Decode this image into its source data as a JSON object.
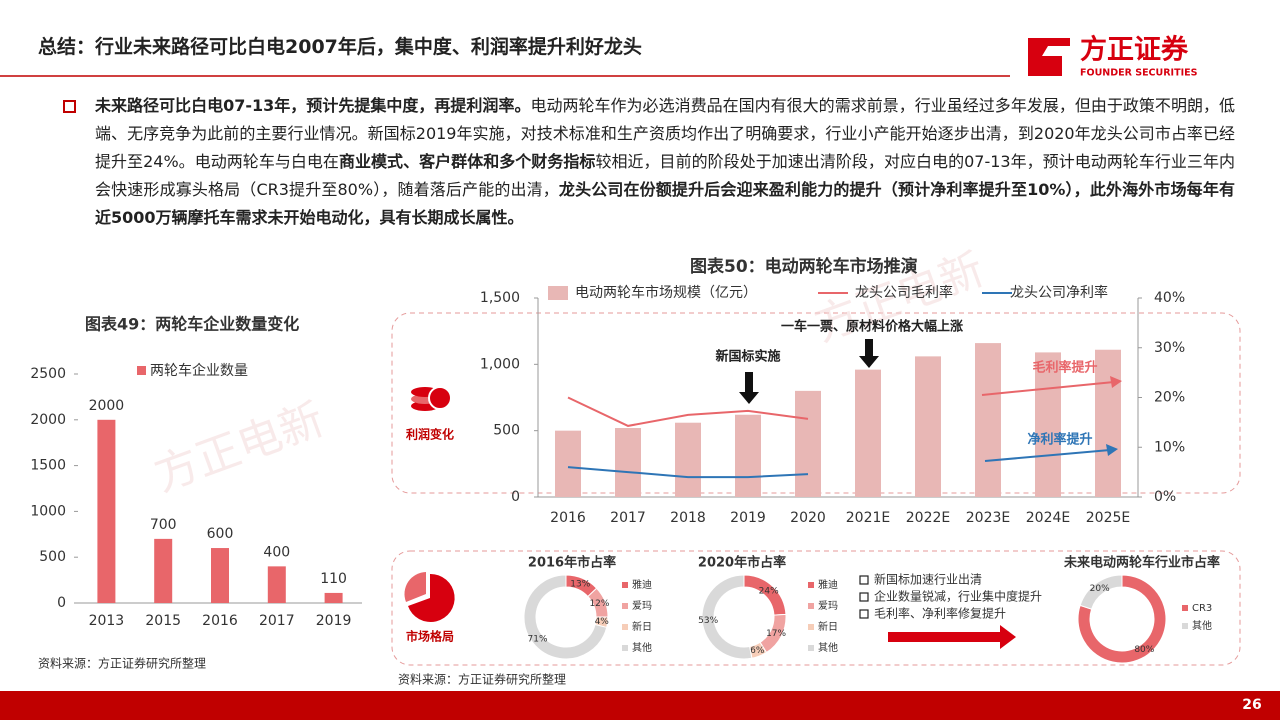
{
  "header": {
    "title": "总结：行业未来路径可比白电2007年后，集中度、利润率提升利好龙头",
    "logo": {
      "name": "方正证券",
      "subtitle": "FOUNDER SECURITIES"
    }
  },
  "summary": [
    {
      "text": "未来路径可比白电07-13年，预计先提集中度，再提利润率。",
      "bold": true
    },
    {
      "text": "电动两轮车作为必选消费品在国内有很大的需求前景，行业虽经过多年发展，但由于政策不明朗，低端、无序竞争为此前的主要行业情况。新国标2019年实施，对技术标准和生产资质均作出了明确要求，行业小产能开始逐步出清，到2020年龙头公司市占率已经提升至24%。电动两轮车与白电在",
      "bold": false
    },
    {
      "text": "商业模式、客户群体和多个财务指标",
      "bold": true
    },
    {
      "text": "较相近，目前的阶段处于加速出清阶段，对应白电的07-13年，预计电动两轮车行业三年内会快速形成寡头格局（CR3提升至80%），随着落后产能的出清，",
      "bold": false
    },
    {
      "text": "龙头公司在份额提升后会迎来盈利能力的提升（预计净利率提升至10%），此外海外市场每年有近5000万辆摩托车需求未开始电动化，具有长期成长属性。",
      "bold": true
    }
  ],
  "watermark": "方正电新",
  "panel_labels": [
    "利润变化",
    "市场格局"
  ],
  "checklist": [
    "新国标加速行业出清",
    "企业数量锐减，行业集中度提升",
    "毛利率、净利率修复提升"
  ],
  "page_number": 26,
  "chart_data": [
    {
      "type": "bar",
      "title": "图表49：两轮车企业数量变化",
      "categories": [
        "2013",
        "2015",
        "2016",
        "2017",
        "2019"
      ],
      "series": [
        {
          "name": "两轮车企业数量",
          "color": "#e8666a",
          "values": [
            2000,
            700,
            600,
            400,
            110
          ]
        }
      ],
      "ylim": [
        0,
        2500
      ],
      "yticks": [
        0,
        500,
        1000,
        1500,
        2000,
        2500
      ],
      "source": "资料来源：方正证券研究所整理"
    },
    {
      "type": "bar",
      "title": "图表50：电动两轮车市场推演",
      "categories": [
        "2016",
        "2017",
        "2018",
        "2019",
        "2020",
        "2021E",
        "2022E",
        "2023E",
        "2024E",
        "2025E"
      ],
      "series": [
        {
          "name": "电动两轮车市场规模（亿元）",
          "color": "#e8b7b5",
          "values": [
            500,
            520,
            560,
            620,
            800,
            960,
            1060,
            1160,
            1090,
            1110
          ]
        },
        {
          "name": "龙头公司毛利率",
          "type": "line",
          "axis": "y2",
          "color": "#e8666a",
          "values": [
            20,
            14.3,
            16.5,
            17.3,
            15.7,
            null,
            null,
            null,
            null,
            null
          ]
        },
        {
          "name": "龙头公司净利率",
          "type": "line",
          "axis": "y2",
          "color": "#2e75b6",
          "values": [
            6,
            5,
            4,
            4,
            4.6,
            null,
            null,
            null,
            null,
            null
          ]
        }
      ],
      "ylim": [
        0,
        1500
      ],
      "yticks": [
        0,
        500,
        {
          "value": 1000,
          "label": "1,000"
        },
        {
          "value": 1500,
          "label": "1,500"
        }
      ],
      "y2lim": [
        0,
        40
      ],
      "y2ticks": [
        {
          "value": 0,
          "label": "0%"
        },
        {
          "value": 10,
          "label": "10%"
        },
        {
          "value": 20,
          "label": "20%"
        },
        {
          "value": 30,
          "label": "30%"
        },
        {
          "value": 40,
          "label": "40%"
        }
      ],
      "annotations": [
        "新国标实施",
        "一车一票、原材料价格大幅上涨",
        "毛利率提升",
        "净利率提升"
      ],
      "source": "资料来源：方正证券研究所整理"
    },
    {
      "type": "pie",
      "donut": true,
      "title": "2016年市占率",
      "categories": [
        "雅迪",
        "爱玛",
        "新日",
        "其他"
      ],
      "values": [
        13,
        12,
        4,
        71
      ],
      "value_labels": [
        "13%",
        "12%",
        "4%",
        "71%"
      ],
      "colors": [
        "#e8666a",
        "#f0a3a1",
        "#f6cdb8",
        "#d9d9d9"
      ]
    },
    {
      "type": "pie",
      "donut": true,
      "title": "2020年市占率",
      "categories": [
        "雅迪",
        "爱玛",
        "新日",
        "其他"
      ],
      "values": [
        24,
        17,
        6,
        53
      ],
      "value_labels": [
        "24%",
        "17%",
        "6%",
        "53%"
      ],
      "colors": [
        "#e8666a",
        "#f0a3a1",
        "#f6cdb8",
        "#d9d9d9"
      ]
    },
    {
      "type": "pie",
      "donut": true,
      "title": "未来电动两轮车行业市占率",
      "categories": [
        "CR3",
        "其他"
      ],
      "values": [
        80,
        20
      ],
      "value_labels": [
        "80%",
        "20%"
      ],
      "colors": [
        "#e8666a",
        "#d9d9d9"
      ]
    }
  ]
}
